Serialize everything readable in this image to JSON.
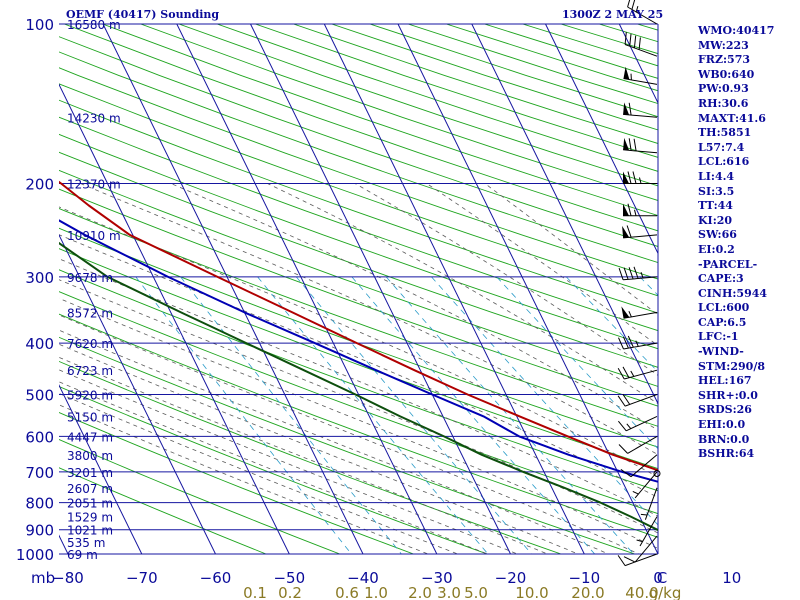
{
  "header": {
    "title": "OEMF (40417) Sounding",
    "valid_time": "1300Z  2 MAY 25"
  },
  "indices": [
    "WMO:40417",
    "MW:223",
    "FRZ:573",
    "WB0:640",
    "PW:0.93",
    "RH:30.6",
    "MAXT:41.6",
    "TH:5851",
    "L57:7.4",
    "LCL:616",
    "LI:4.4",
    "SI:3.5",
    "TT:44",
    "KI:20",
    "SW:66",
    "EI:0.2",
    "-PARCEL-",
    "CAPE:3",
    "CINH:5944",
    "LCL:600",
    "CAP:6.5",
    "LFC:-1",
    "-WIND-",
    "STM:290/8",
    "HEL:167",
    "SHR+:0.0",
    "SRDS:26",
    "EHI:0.0",
    "BRN:0.0",
    "BSHR:64"
  ],
  "colors": {
    "frame": "#1616a0",
    "dry_adiabat": "#1fa51f",
    "moist_adiabat": "#5c5c5c",
    "mixing_ratio": "#2b9cc9",
    "temperature": "#b00000",
    "dewpoint": "#0d4f0d",
    "parcel": "#0000b4",
    "text": "#0a0a99",
    "mixing_label": "#8a7a25",
    "wind": "#000000"
  },
  "chart_data": {
    "type": "line",
    "x_axis_label": "C",
    "y_axis_label": "mb",
    "xlim": [
      -80,
      0
    ],
    "ylim": [
      1000,
      100
    ],
    "y_scale": "log",
    "pressure_ticks": [
      100,
      200,
      300,
      400,
      500,
      600,
      700,
      800,
      900,
      1000
    ],
    "temperature_ticks": [
      -80,
      -70,
      -60,
      -50,
      -40,
      -30,
      -20,
      -10,
      0,
      10,
      20,
      30,
      40,
      50
    ],
    "height_labels": [
      {
        "p": 100,
        "label": "16580 m"
      },
      {
        "p": 150,
        "label": "14230 m"
      },
      {
        "p": 200,
        "label": "12370 m"
      },
      {
        "p": 250,
        "label": "10910 m"
      },
      {
        "p": 300,
        "label": "9678 m"
      },
      {
        "p": 350,
        "label": "8572 m"
      },
      {
        "p": 400,
        "label": "7620 m"
      },
      {
        "p": 450,
        "label": "6723 m"
      },
      {
        "p": 500,
        "label": "5920 m"
      },
      {
        "p": 550,
        "label": "5150 m"
      },
      {
        "p": 600,
        "label": "4447 m"
      },
      {
        "p": 650,
        "label": "3800 m"
      },
      {
        "p": 700,
        "label": "3201 m"
      },
      {
        "p": 750,
        "label": "2607 m"
      },
      {
        "p": 800,
        "label": "2051 m"
      },
      {
        "p": 850,
        "label": "1529 m"
      },
      {
        "p": 900,
        "label": "1021 m"
      },
      {
        "p": 950,
        "label": "535 m"
      },
      {
        "p": 1000,
        "label": "69 m"
      }
    ],
    "mixing_ratio_labels": [
      "0.1",
      "0.2",
      "0.6",
      "1.0",
      "2.0",
      "3.0",
      "5.0",
      "10.0",
      "20.0",
      "40.0",
      "g/kg"
    ],
    "series": [
      {
        "key": "temperature",
        "points": [
          {
            "p": 1000,
            "t": 42.0
          },
          {
            "p": 950,
            "t": 36.6
          },
          {
            "p": 900,
            "t": 30.8
          },
          {
            "p": 850,
            "t": 25.0
          },
          {
            "p": 800,
            "t": 19.0
          },
          {
            "p": 750,
            "t": 12.7
          },
          {
            "p": 700,
            "t": 6.1
          },
          {
            "p": 650,
            "t": 0.5
          },
          {
            "p": 600,
            "t": -4.4
          },
          {
            "p": 550,
            "t": -9.6
          },
          {
            "p": 500,
            "t": -15.2
          },
          {
            "p": 450,
            "t": -20.8
          },
          {
            "p": 400,
            "t": -26.8
          },
          {
            "p": 350,
            "t": -33.5
          },
          {
            "p": 300,
            "t": -41.3
          },
          {
            "p": 250,
            "t": -50.4
          },
          {
            "p": 220,
            "t": -54.0
          },
          {
            "p": 200,
            "t": -56.3
          },
          {
            "p": 150,
            "t": -64.0
          },
          {
            "p": 100,
            "t": -74.0
          }
        ]
      },
      {
        "key": "dewpoint",
        "points": [
          {
            "p": 1000,
            "t": 7.2
          },
          {
            "p": 950,
            "t": 4.4
          },
          {
            "p": 900,
            "t": 1.5
          },
          {
            "p": 850,
            "t": -1.2
          },
          {
            "p": 800,
            "t": -4.4
          },
          {
            "p": 750,
            "t": -8.3
          },
          {
            "p": 700,
            "t": -12.8
          },
          {
            "p": 650,
            "t": -17.3
          },
          {
            "p": 600,
            "t": -21.2
          },
          {
            "p": 550,
            "t": -25.8
          },
          {
            "p": 500,
            "t": -30.4
          },
          {
            "p": 450,
            "t": -35.8
          },
          {
            "p": 400,
            "t": -41.8
          },
          {
            "p": 350,
            "t": -48.6
          },
          {
            "p": 300,
            "t": -56.2
          },
          {
            "p": 250,
            "t": -61.6
          },
          {
            "p": 200,
            "t": -71.8
          },
          {
            "p": 190,
            "t": -75.5
          },
          {
            "p": 170,
            "t": -80.0
          }
        ]
      },
      {
        "key": "parcel",
        "points": [
          {
            "p": 1000,
            "t": 42.0
          },
          {
            "p": 950,
            "t": 36.0
          },
          {
            "p": 900,
            "t": 28.8
          },
          {
            "p": 850,
            "t": 21.6
          },
          {
            "p": 800,
            "t": 14.4
          },
          {
            "p": 750,
            "t": 7.4
          },
          {
            "p": 700,
            "t": 0.6
          },
          {
            "p": 650,
            "t": -5.5
          },
          {
            "p": 600,
            "t": -11.0
          },
          {
            "p": 550,
            "t": -14.5
          },
          {
            "p": 500,
            "t": -20.0
          },
          {
            "p": 450,
            "t": -26.0
          },
          {
            "p": 400,
            "t": -32.5
          },
          {
            "p": 350,
            "t": -40.0
          },
          {
            "p": 300,
            "t": -48.0
          },
          {
            "p": 250,
            "t": -56.5
          },
          {
            "p": 200,
            "t": -65.5
          },
          {
            "p": 150,
            "t": -76.0
          },
          {
            "p": 140,
            "t": -80.0
          }
        ]
      }
    ],
    "wind_barbs": [
      {
        "p": 100,
        "dir": 300,
        "spd": 25
      },
      {
        "p": 115,
        "dir": 290,
        "spd": 40
      },
      {
        "p": 130,
        "dir": 280,
        "spd": 55
      },
      {
        "p": 150,
        "dir": 275,
        "spd": 60
      },
      {
        "p": 175,
        "dir": 275,
        "spd": 70
      },
      {
        "p": 200,
        "dir": 270,
        "spd": 75
      },
      {
        "p": 230,
        "dir": 270,
        "spd": 65
      },
      {
        "p": 250,
        "dir": 265,
        "spd": 60
      },
      {
        "p": 300,
        "dir": 265,
        "spd": 45
      },
      {
        "p": 350,
        "dir": 260,
        "spd": 55
      },
      {
        "p": 400,
        "dir": 260,
        "spd": 35
      },
      {
        "p": 450,
        "dir": 255,
        "spd": 25
      },
      {
        "p": 500,
        "dir": 250,
        "spd": 20
      },
      {
        "p": 550,
        "dir": 245,
        "spd": 15
      },
      {
        "p": 600,
        "dir": 240,
        "spd": 10
      },
      {
        "p": 650,
        "dir": 230,
        "spd": 10
      },
      {
        "p": 700,
        "dir": 220,
        "spd": 5
      },
      {
        "p": 750,
        "dir": 200,
        "spd": 5
      },
      {
        "p": 850,
        "dir": 210,
        "spd": 5
      },
      {
        "p": 925,
        "dir": 220,
        "spd": 10
      },
      {
        "p": 1000,
        "dir": 250,
        "spd": 10
      }
    ]
  }
}
